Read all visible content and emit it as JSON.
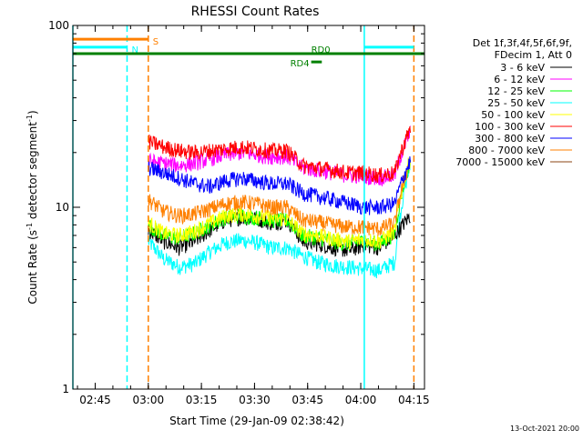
{
  "chart_data": {
    "type": "line",
    "title": "RHESSI Count Rates",
    "xlabel": "Start Time (29-Jan-09 02:38:42)",
    "ylabel_main": "Count Rate (s",
    "ylabel_sup1": "-1",
    "ylabel_mid": " detector segment",
    "ylabel_sup2": "-1",
    "ylabel_end": ")",
    "yscale": "log",
    "ylim": [
      1,
      100
    ],
    "xlim": [
      "02:38:42",
      "04:18:00"
    ],
    "x_ticks": [
      "02:45",
      "03:00",
      "03:15",
      "03:30",
      "03:45",
      "04:00",
      "04:15"
    ],
    "y_ticks": [
      "1",
      "10",
      "100"
    ],
    "legend_header": [
      "Det 1f,3f,4f,5f,6f,9f,",
      "FDecim 1, Att 0"
    ],
    "series": [
      {
        "name": "3 - 6 keV",
        "color": "#000000",
        "start": "03:00",
        "end": "04:14",
        "values": [
          7.5,
          6.5,
          6.0,
          6.5,
          7.5,
          8.5,
          8.8,
          8.7,
          8.2,
          8.5,
          6.5,
          6.3,
          6.0,
          5.8,
          6.2,
          6.0,
          7.0,
          9.0
        ]
      },
      {
        "name": "6 - 12 keV",
        "color": "#ff00ff",
        "start": "03:00",
        "end": "04:14",
        "values": [
          18.0,
          17.5,
          17.0,
          17.5,
          18.5,
          19.5,
          20.0,
          19.5,
          19.0,
          19.0,
          16.5,
          16.0,
          15.5,
          15.0,
          14.8,
          14.5,
          15.0,
          26.0
        ]
      },
      {
        "name": "12 - 25 keV",
        "color": "#00ff00",
        "start": "03:00",
        "end": "04:14",
        "values": [
          8.0,
          7.0,
          6.8,
          7.2,
          8.0,
          8.8,
          9.0,
          8.8,
          8.5,
          8.5,
          7.0,
          6.8,
          6.5,
          6.3,
          6.5,
          6.3,
          7.2,
          18.0
        ]
      },
      {
        "name": "25 - 50 keV",
        "color": "#00ffff",
        "start": "03:00",
        "end": "04:14",
        "values": [
          6.5,
          5.2,
          4.7,
          4.9,
          5.7,
          6.4,
          6.6,
          6.4,
          6.0,
          6.0,
          5.4,
          5.0,
          4.8,
          4.7,
          4.6,
          4.5,
          5.0,
          17.0
        ]
      },
      {
        "name": "50 - 100 keV",
        "color": "#ffff00",
        "start": "03:00",
        "end": "04:14",
        "values": [
          8.2,
          7.2,
          7.0,
          7.4,
          8.2,
          9.0,
          9.2,
          9.0,
          8.7,
          8.6,
          7.2,
          7.0,
          6.7,
          6.5,
          6.7,
          6.5,
          7.4,
          18.5
        ]
      },
      {
        "name": "100 - 300 keV",
        "color": "#ff0000",
        "start": "03:00",
        "end": "04:14",
        "values": [
          23.0,
          21.5,
          20.5,
          20.0,
          20.5,
          21.0,
          21.5,
          21.0,
          20.5,
          20.5,
          17.0,
          16.5,
          16.0,
          15.5,
          15.5,
          15.0,
          15.5,
          27.0
        ]
      },
      {
        "name": "300 - 800 keV",
        "color": "#0000ff",
        "start": "03:00",
        "end": "04:14",
        "values": [
          16.5,
          15.5,
          14.5,
          13.5,
          13.0,
          14.0,
          14.5,
          14.0,
          13.5,
          13.5,
          12.0,
          11.5,
          11.0,
          10.5,
          10.0,
          10.0,
          10.5,
          18.0
        ]
      },
      {
        "name": "800 - 7000 keV",
        "color": "#ff8000",
        "start": "03:00",
        "end": "04:14",
        "values": [
          11.0,
          9.5,
          9.0,
          9.2,
          9.8,
          10.5,
          10.7,
          10.5,
          10.0,
          10.0,
          8.5,
          8.3,
          8.0,
          7.8,
          7.8,
          7.6,
          8.2,
          18.0
        ]
      },
      {
        "name": "7000 - 15000 keV",
        "color": "#8b4513",
        "start": "03:00",
        "end": "04:14",
        "values": []
      }
    ],
    "annotations": {
      "flags": [
        {
          "label": "S",
          "color": "#ff8000",
          "start": "02:38:42",
          "end": "03:00",
          "level": 84
        },
        {
          "label": "N",
          "color": "#00ffff",
          "start": "02:38:42",
          "end": "02:54",
          "level": 76
        },
        {
          "label": "",
          "color": "#00ffff",
          "start": "04:01",
          "end": "04:15",
          "level": 76
        },
        {
          "label": "RD0",
          "color": "#008000",
          "start": "02:38:42",
          "end": "04:18",
          "level": 70
        },
        {
          "label": "RD4",
          "color": "#008000",
          "start": "03:46",
          "end": "03:49",
          "level": 63
        }
      ],
      "vlines": [
        {
          "time": "02:38:42",
          "color": "#00ffff",
          "style": "solid"
        },
        {
          "time": "02:54",
          "color": "#00ffff",
          "style": "dashed"
        },
        {
          "time": "03:00",
          "color": "#ff8000",
          "style": "dashed"
        },
        {
          "time": "04:01",
          "color": "#00ffff",
          "style": "solid"
        },
        {
          "time": "04:15",
          "color": "#ff8000",
          "style": "dashed"
        }
      ]
    }
  },
  "footer": {
    "date_stamp": "13-Oct-2021 20:00"
  }
}
